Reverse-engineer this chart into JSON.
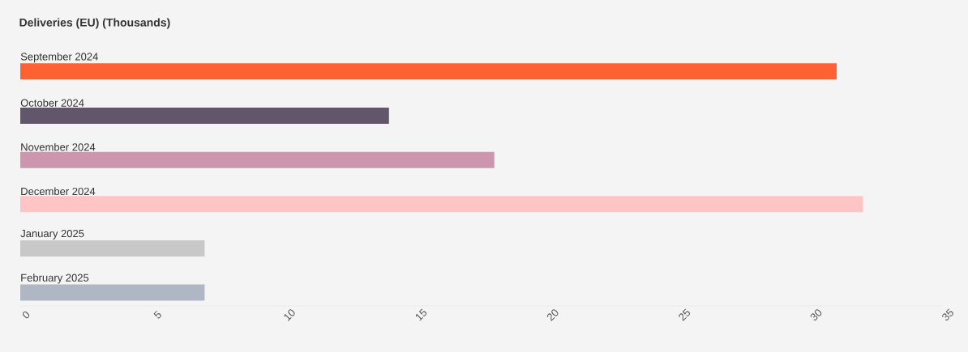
{
  "chart_data": {
    "type": "bar",
    "orientation": "horizontal",
    "title": "Deliveries (EU) (Thousands)",
    "categories": [
      "September 2024",
      "October 2024",
      "November 2024",
      "December 2024",
      "January 2025",
      "February 2025"
    ],
    "values": [
      31,
      14,
      18,
      32,
      7,
      7
    ],
    "colors": [
      "#ff6232",
      "#62566b",
      "#cc97ae",
      "#ffc4c4",
      "#c8c8c8",
      "#b0b7c4"
    ],
    "xlim": [
      0,
      35
    ],
    "xticks": [
      0,
      5,
      10,
      15,
      20,
      25,
      30,
      35
    ]
  }
}
